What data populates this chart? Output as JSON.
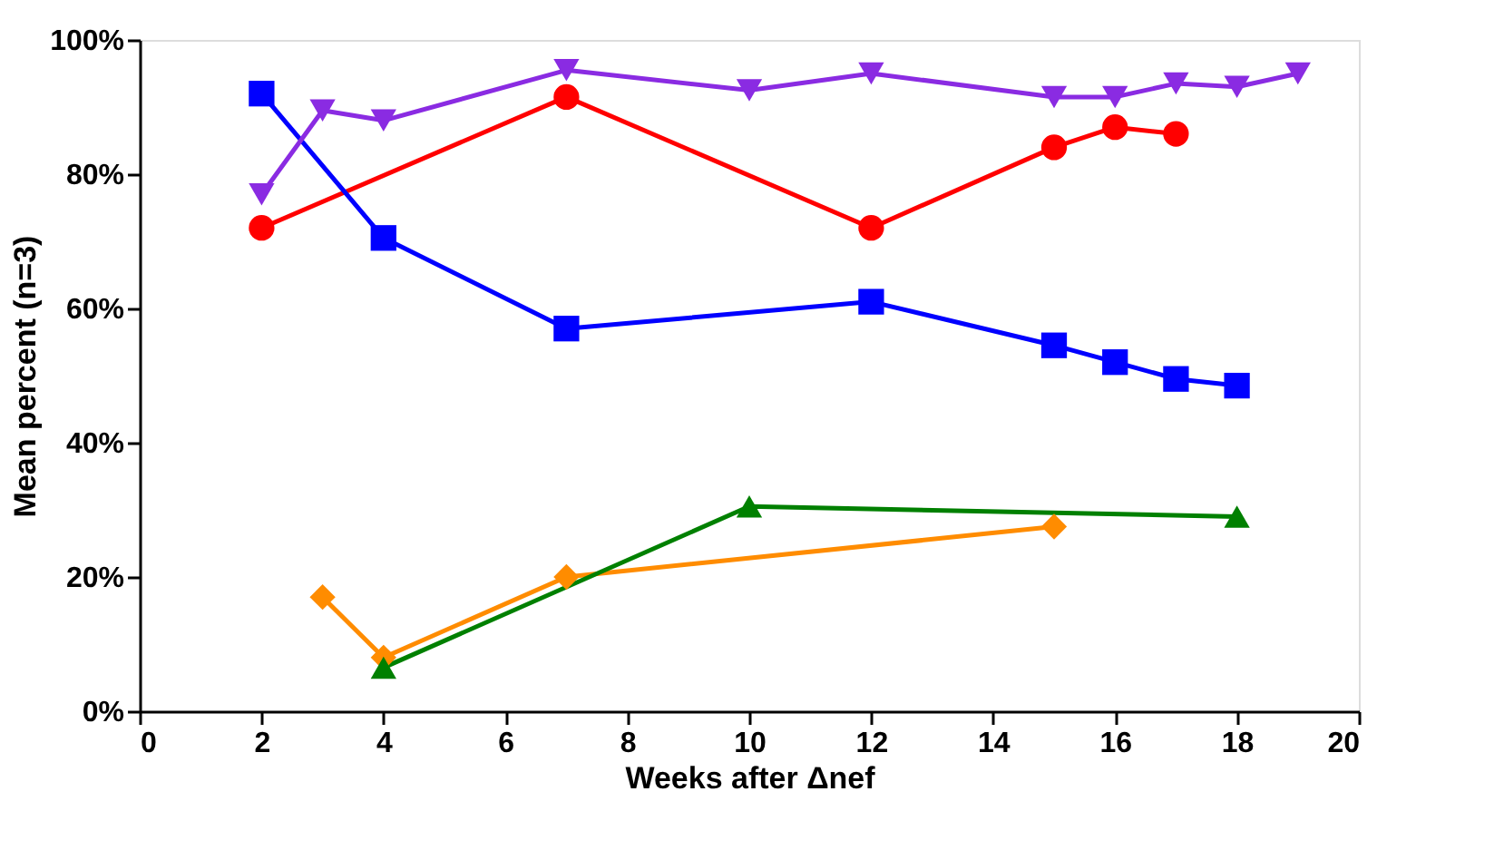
{
  "chart_data": {
    "type": "line",
    "xlabel": "Weeks after Δnef",
    "ylabel": "Mean percent (n=3)",
    "xlim": [
      0,
      20
    ],
    "xticks": [
      0,
      2,
      4,
      6,
      8,
      10,
      12,
      14,
      16,
      18,
      20
    ],
    "ylim": [
      0,
      100
    ],
    "yticks": [
      {
        "value": 0,
        "label": "0%"
      },
      {
        "value": 20,
        "label": "20%"
      },
      {
        "value": 40,
        "label": "40%"
      },
      {
        "value": 60,
        "label": "60%"
      },
      {
        "value": 80,
        "label": "80%"
      },
      {
        "value": 100,
        "label": "100%"
      }
    ],
    "grid": false,
    "legend": false,
    "line_style": "solid",
    "series": [
      {
        "color": "#ff0000",
        "marker": "circle",
        "x": [
          2,
          7,
          12,
          15,
          16,
          17
        ],
        "values": [
          72,
          91.5,
          72,
          84,
          87,
          86
        ]
      },
      {
        "color": "#0000ff",
        "marker": "square",
        "x": [
          2,
          4,
          7,
          12,
          15,
          16,
          17,
          18
        ],
        "values": [
          92,
          70.5,
          57,
          61,
          54.5,
          52,
          49.5,
          48.5
        ]
      },
      {
        "color": "#8a2be2",
        "marker": "triangle-down",
        "x": [
          2,
          3,
          4,
          7,
          10,
          12,
          15,
          16,
          17,
          18,
          19
        ],
        "values": [
          77,
          89.5,
          88,
          95.5,
          92.5,
          95,
          91.5,
          91.5,
          93.5,
          93,
          95
        ]
      },
      {
        "color": "#ff8c00",
        "marker": "diamond",
        "x": [
          3,
          4,
          7,
          15
        ],
        "values": [
          17,
          8,
          20,
          27.5
        ]
      },
      {
        "color": "#008000",
        "marker": "triangle",
        "x": [
          4,
          10,
          18
        ],
        "values": [
          6.5,
          30.5,
          29
        ]
      }
    ]
  }
}
